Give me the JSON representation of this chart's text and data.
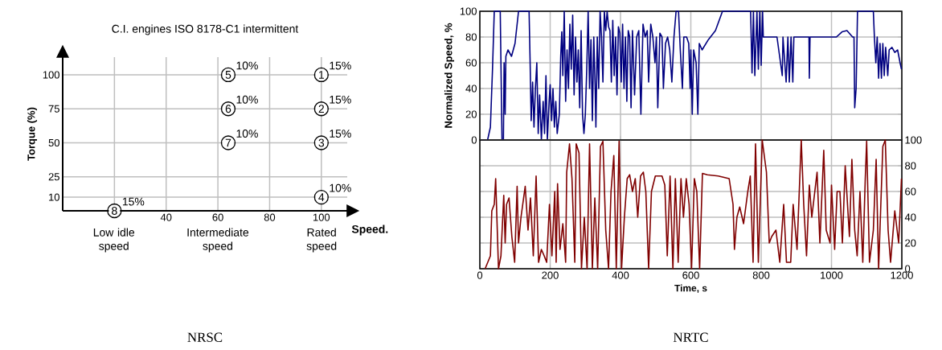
{
  "chart_data": [
    {
      "type": "scatter",
      "title": "C.I. engines ISO 8178-C1 intermittent",
      "xlabel": "Speed.",
      "ylabel": "Torque (%)",
      "x": [
        100,
        100,
        100,
        100,
        64,
        64,
        64,
        20
      ],
      "values": [
        100,
        75,
        50,
        10,
        100,
        75,
        50,
        0
      ],
      "color": "#000000",
      "marker": "circle",
      "xlim": [
        0,
        110
      ],
      "ylim": [
        0,
        113
      ],
      "xticks": [
        {
          "value": 20,
          "label": null
        },
        40,
        60,
        80,
        100
      ],
      "yticks": [
        10,
        25,
        50,
        75,
        100
      ],
      "grid": true,
      "annotations": [
        {
          "text": "1",
          "x": 100,
          "y": 100
        },
        {
          "text": "2",
          "x": 100,
          "y": 75
        },
        {
          "text": "3",
          "x": 100,
          "y": 50
        },
        {
          "text": "4",
          "x": 100,
          "y": 10
        },
        {
          "text": "5",
          "x": 64,
          "y": 100
        },
        {
          "text": "6",
          "x": 64,
          "y": 75
        },
        {
          "text": "7",
          "x": 64,
          "y": 50
        },
        {
          "text": "8",
          "x": 20,
          "y": 0
        },
        {
          "text": "15%",
          "x": 100,
          "y": 100
        },
        {
          "text": "15%",
          "x": 100,
          "y": 75
        },
        {
          "text": "15%",
          "x": 100,
          "y": 50
        },
        {
          "text": "10%",
          "x": 100,
          "y": 10
        },
        {
          "text": "10%",
          "x": 64,
          "y": 100
        },
        {
          "text": "10%",
          "x": 64,
          "y": 75
        },
        {
          "text": "10%",
          "x": 64,
          "y": 50
        },
        {
          "text": "15%",
          "x": 20,
          "y": 0
        },
        "Low idle speed",
        "Intermediate speed",
        "Rated speed",
        "NRSC"
      ]
    },
    {
      "type": "line",
      "ylabel": "Normalized Speed, %",
      "series": [
        {
          "color": "#000080",
          "x": [
            0,
            22,
            30,
            36,
            41,
            58,
            63,
            67,
            69,
            72,
            74,
            80,
            90,
            100,
            110,
            140,
            143,
            146,
            150,
            154,
            158,
            162,
            166,
            170,
            175,
            180,
            184,
            188,
            192,
            197,
            200,
            204,
            208,
            212,
            216,
            220,
            226,
            230,
            233,
            236,
            240,
            244,
            248,
            252,
            256,
            260,
            264,
            268,
            272,
            276,
            280,
            284,
            288,
            292,
            296,
            300,
            304,
            308,
            312,
            316,
            320,
            324,
            328,
            330,
            334,
            338,
            342,
            346,
            350,
            354,
            358,
            362,
            366,
            370,
            374,
            378,
            382,
            386,
            390,
            394,
            398,
            402,
            406,
            410,
            414,
            418,
            422,
            426,
            430,
            434,
            440,
            446,
            452,
            458,
            464,
            470,
            476,
            480,
            486,
            492,
            498,
            502,
            506,
            512,
            518,
            522,
            528,
            534,
            540,
            546,
            552,
            558,
            565,
            570,
            576,
            580,
            588,
            594,
            598,
            600,
            604,
            608,
            615,
            620,
            624,
            632,
            650,
            670,
            690,
            770,
            774,
            778,
            782,
            788,
            792,
            796,
            800,
            804,
            806,
            820,
            845,
            860,
            862,
            871,
            876,
            880,
            885,
            890,
            893,
            936,
            937,
            939,
            1014,
            1030,
            1044,
            1060,
            1064,
            1066,
            1070,
            1074,
            1119,
            1122,
            1126,
            1130,
            1134,
            1138,
            1142,
            1146,
            1150,
            1154,
            1160,
            1164,
            1172,
            1180,
            1188,
            1195,
            1199
          ],
          "values": [
            0,
            0,
            10,
            55,
            100,
            100,
            0,
            0,
            60,
            20,
            65,
            70,
            65,
            75,
            100,
            100,
            60,
            15,
            45,
            10,
            40,
            60,
            5,
            35,
            0,
            30,
            5,
            50,
            0,
            30,
            43,
            15,
            40,
            10,
            30,
            5,
            20,
            65,
            84,
            50,
            100,
            30,
            70,
            40,
            90,
            55,
            97,
            35,
            80,
            45,
            70,
            25,
            85,
            20,
            5,
            20,
            55,
            100,
            40,
            78,
            15,
            80,
            40,
            10,
            80,
            40,
            100,
            80,
            45,
            100,
            85,
            100,
            88,
            85,
            45,
            93,
            50,
            80,
            35,
            88,
            83,
            45,
            90,
            40,
            80,
            30,
            85,
            80,
            25,
            85,
            35,
            80,
            85,
            20,
            90,
            80,
            85,
            45,
            90,
            80,
            60,
            80,
            25,
            83,
            80,
            40,
            75,
            80,
            70,
            45,
            80,
            100,
            100,
            70,
            40,
            80,
            80,
            75,
            40,
            70,
            20,
            70,
            60,
            20,
            75,
            70,
            78,
            85,
            100,
            100,
            52,
            100,
            50,
            100,
            55,
            100,
            58,
            100,
            80,
            80,
            80,
            50,
            80,
            45,
            80,
            45,
            80,
            45,
            80,
            80,
            48,
            80,
            80,
            84,
            85,
            80,
            80,
            25,
            40,
            100,
            100,
            80,
            60,
            80,
            48,
            75,
            48,
            75,
            50,
            72,
            50,
            70,
            72,
            68,
            70,
            60,
            55
          ]
        }
      ],
      "xlim": [
        0,
        1200
      ],
      "xticks": [
        0,
        200,
        400,
        600,
        800,
        1000,
        1200
      ],
      "ylim": [
        0,
        100
      ],
      "yticks": [
        0,
        20,
        40,
        60,
        80,
        100
      ],
      "grid": true,
      "tick_labels": "y"
    },
    {
      "type": "line",
      "xlabel": "Time, s",
      "series": [
        {
          "color": "#800000",
          "axis": "y2",
          "x": [
            15,
            30,
            34,
            41,
            45,
            49,
            53,
            60,
            68,
            72,
            76,
            83,
            91,
            99,
            106,
            110,
            117,
            129,
            137,
            144,
            152,
            160,
            167,
            175,
            183,
            190,
            198,
            205,
            213,
            217,
            221,
            228,
            236,
            244,
            247,
            255,
            262,
            270,
            274,
            282,
            289,
            297,
            305,
            312,
            320,
            327,
            335,
            343,
            350,
            358,
            366,
            373,
            381,
            388,
            396,
            403,
            411,
            419,
            426,
            434,
            442,
            449,
            457,
            465,
            472,
            480,
            488,
            499,
            518,
            526,
            533,
            541,
            549,
            556,
            564,
            572,
            579,
            587,
            595,
            602,
            610,
            617,
            625,
            633,
            647,
            678,
            709,
            720,
            724,
            731,
            739,
            750,
            762,
            769,
            777,
            784,
            792,
            803,
            815,
            823,
            830,
            842,
            853,
            864,
            872,
            884,
            891,
            902,
            914,
            921,
            929,
            937,
            944,
            959,
            967,
            978,
            985,
            996,
            1000,
            1009,
            1016,
            1024,
            1031,
            1039,
            1051,
            1058,
            1066,
            1073,
            1081,
            1089,
            1096,
            1100,
            1108,
            1119,
            1127,
            1134,
            1146,
            1153,
            1161,
            1168,
            1180,
            1191,
            1199
          ],
          "values": [
            0,
            10,
            45,
            50,
            70,
            35,
            0,
            10,
            57,
            20,
            50,
            55,
            25,
            5,
            64,
            20,
            40,
            64,
            30,
            55,
            10,
            72,
            5,
            15,
            10,
            5,
            50,
            10,
            60,
            5,
            66,
            15,
            35,
            5,
            75,
            97,
            70,
            5,
            97,
            90,
            0,
            40,
            0,
            97,
            0,
            55,
            0,
            95,
            99,
            30,
            0,
            60,
            88,
            0,
            99,
            0,
            40,
            70,
            73,
            60,
            70,
            40,
            72,
            75,
            60,
            0,
            60,
            72,
            72,
            65,
            10,
            72,
            0,
            70,
            5,
            70,
            40,
            70,
            50,
            0,
            70,
            60,
            0,
            74,
            73,
            72,
            70,
            50,
            15,
            40,
            48,
            35,
            60,
            72,
            5,
            97,
            5,
            100,
            75,
            20,
            25,
            30,
            5,
            50,
            5,
            5,
            50,
            15,
            100,
            50,
            10,
            65,
            40,
            75,
            20,
            92,
            30,
            20,
            65,
            15,
            60,
            60,
            20,
            80,
            25,
            85,
            30,
            10,
            60,
            5,
            70,
            99,
            5,
            30,
            85,
            0,
            95,
            100,
            30,
            5,
            45,
            20,
            70
          ]
        }
      ],
      "xlim": [
        0,
        1200
      ],
      "xticks": [
        0,
        200,
        400,
        600,
        800,
        1000,
        1200
      ],
      "y2lim": [
        0,
        100
      ],
      "y2ticks": [
        0,
        20,
        40,
        60,
        80,
        100
      ],
      "grid": true,
      "annotations": [
        "NRTC"
      ]
    }
  ]
}
